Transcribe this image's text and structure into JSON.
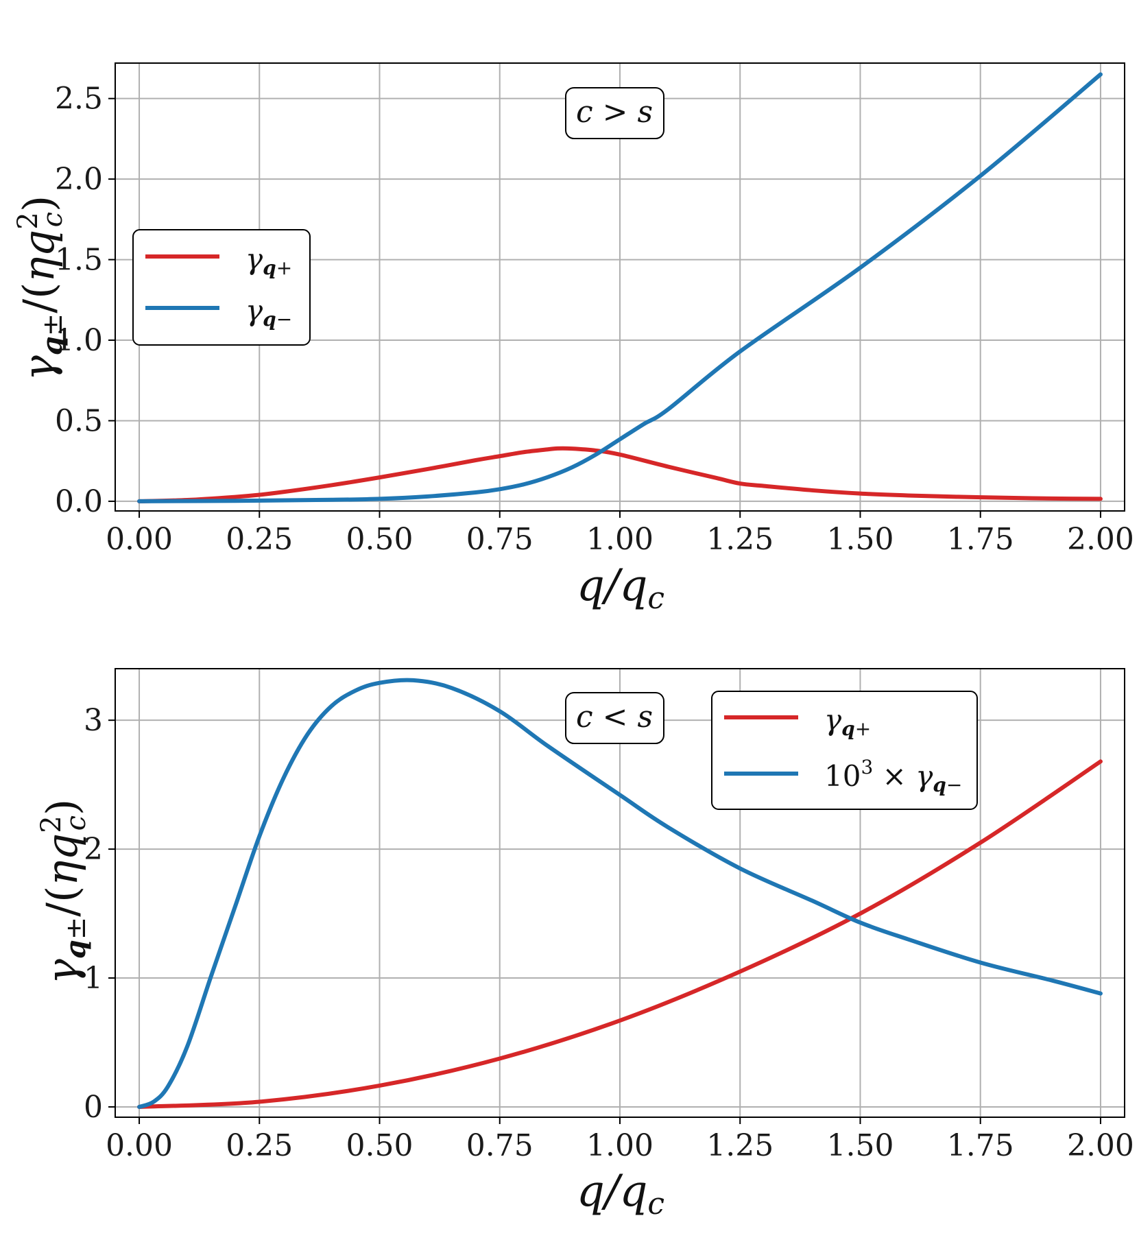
{
  "colors": {
    "red": "#d62728",
    "blue": "#1f77b4",
    "grid": "#b0b0b0"
  },
  "chart_data": [
    {
      "type": "line",
      "annotation": "c > s",
      "xlabel": "q/q_c",
      "ylabel": "γ_q±/(ηq_c²)",
      "xlim": [
        -0.05,
        2.05
      ],
      "ylim": [
        -0.06,
        2.72
      ],
      "xticks": [
        0,
        0.25,
        0.5,
        0.75,
        1.0,
        1.25,
        1.5,
        1.75,
        2.0
      ],
      "xtick_labels": [
        "0.00",
        "0.25",
        "0.50",
        "0.75",
        "1.00",
        "1.25",
        "1.50",
        "1.75",
        "2.00"
      ],
      "yticks": [
        0,
        0.5,
        1.0,
        1.5,
        2.0,
        2.5
      ],
      "ytick_labels": [
        "0.0",
        "0.5",
        "1.0",
        "1.5",
        "2.0",
        "2.5"
      ],
      "grid": true,
      "legend_position": "left",
      "series": [
        {
          "name": "γ_q+",
          "color": "#d62728",
          "x": [
            0,
            0.1,
            0.2,
            0.25,
            0.3,
            0.4,
            0.5,
            0.6,
            0.7,
            0.75,
            0.8,
            0.85,
            0.87,
            0.9,
            0.95,
            1.0,
            1.1,
            1.2,
            1.25,
            1.3,
            1.4,
            1.5,
            1.6,
            1.7,
            1.8,
            1.9,
            2.0
          ],
          "y": [
            0,
            0.008,
            0.027,
            0.04,
            0.058,
            0.1,
            0.148,
            0.2,
            0.255,
            0.28,
            0.305,
            0.322,
            0.328,
            0.327,
            0.315,
            0.29,
            0.215,
            0.145,
            0.11,
            0.095,
            0.068,
            0.048,
            0.036,
            0.028,
            0.022,
            0.017,
            0.015
          ]
        },
        {
          "name": "γ_q−",
          "color": "#1f77b4",
          "x": [
            0,
            0.2,
            0.4,
            0.5,
            0.6,
            0.7,
            0.75,
            0.8,
            0.85,
            0.9,
            0.95,
            1.0,
            1.05,
            1.1,
            1.25,
            1.5,
            1.75,
            2.0
          ],
          "y": [
            0,
            0.003,
            0.009,
            0.015,
            0.03,
            0.055,
            0.075,
            0.105,
            0.15,
            0.21,
            0.29,
            0.385,
            0.48,
            0.57,
            0.93,
            1.45,
            2.02,
            2.65
          ]
        }
      ]
    },
    {
      "type": "line",
      "annotation": "c < s",
      "xlabel": "q/q_c",
      "ylabel": "γ_q±/(ηq_c²)",
      "xlim": [
        -0.05,
        2.05
      ],
      "ylim": [
        -0.08,
        3.4
      ],
      "xticks": [
        0,
        0.25,
        0.5,
        0.75,
        1.0,
        1.25,
        1.5,
        1.75,
        2.0
      ],
      "xtick_labels": [
        "0.00",
        "0.25",
        "0.50",
        "0.75",
        "1.00",
        "1.25",
        "1.50",
        "1.75",
        "2.00"
      ],
      "yticks": [
        0,
        1,
        2,
        3
      ],
      "ytick_labels": [
        "0",
        "1",
        "2",
        "3"
      ],
      "grid": true,
      "legend_position": "top-right",
      "series": [
        {
          "name": "γ_q+",
          "color": "#d62728",
          "x": [
            0,
            0.25,
            0.5,
            0.75,
            1.0,
            1.25,
            1.5,
            1.75,
            2.0
          ],
          "y": [
            0,
            0.04,
            0.165,
            0.375,
            0.67,
            1.05,
            1.5,
            2.05,
            2.68
          ]
        },
        {
          "name": "10³ × γ_q−",
          "color": "#1f77b4",
          "x": [
            0,
            0.03,
            0.06,
            0.1,
            0.15,
            0.2,
            0.25,
            0.3,
            0.35,
            0.4,
            0.45,
            0.5,
            0.57,
            0.65,
            0.75,
            0.85,
            1.0,
            1.1,
            1.25,
            1.4,
            1.5,
            1.6,
            1.75,
            1.9,
            2.0
          ],
          "y": [
            0,
            0.04,
            0.16,
            0.47,
            1.02,
            1.56,
            2.1,
            2.55,
            2.89,
            3.11,
            3.23,
            3.29,
            3.31,
            3.25,
            3.07,
            2.8,
            2.42,
            2.17,
            1.85,
            1.6,
            1.43,
            1.3,
            1.12,
            0.98,
            0.88
          ]
        }
      ]
    }
  ]
}
